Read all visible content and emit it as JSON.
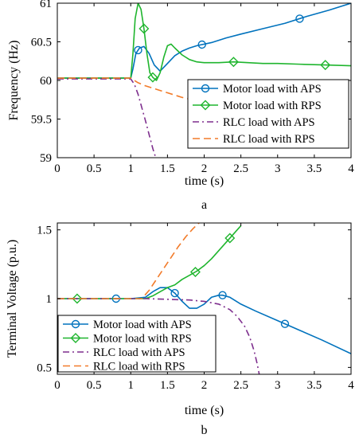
{
  "chart_data": [
    {
      "type": "line",
      "panel_label": "a",
      "xlabel": "time (s)",
      "ylabel": "Frequency (Hz)",
      "xlim": [
        0,
        4
      ],
      "ylim": [
        59,
        61
      ],
      "xticks": [
        0,
        0.5,
        1,
        1.5,
        2,
        2.5,
        3,
        3.5,
        4
      ],
      "xtick_labels": [
        "0",
        "0.5",
        "1",
        "1.5",
        "2",
        "2.5",
        "3",
        "3.5",
        "4"
      ],
      "yticks": [
        59,
        59.5,
        60,
        60.5,
        61
      ],
      "ytick_labels": [
        "59",
        "59.5",
        "60",
        "60.5",
        "61"
      ],
      "grid": false,
      "legend_position": "bottom-right",
      "series": [
        {
          "name": "Motor load with APS",
          "color": "#0072BD",
          "line_style": "solid",
          "marker": "circle",
          "marker_x": [
            1.1,
            1.97,
            3.3
          ],
          "x": [
            0,
            1.0,
            1.03,
            1.07,
            1.12,
            1.18,
            1.25,
            1.32,
            1.4,
            1.5,
            1.6,
            1.7,
            1.8,
            1.9,
            2.0,
            2.1,
            2.3,
            2.5,
            2.8,
            3.1,
            3.4,
            3.7,
            4.0
          ],
          "y": [
            60.03,
            60.03,
            60.15,
            60.35,
            60.42,
            60.44,
            60.35,
            60.2,
            60.12,
            60.22,
            60.32,
            60.38,
            60.42,
            60.45,
            60.47,
            60.49,
            60.55,
            60.6,
            60.67,
            60.74,
            60.83,
            60.91,
            61.0
          ]
        },
        {
          "name": "Motor load with RPS",
          "color": "#1FB52E",
          "line_style": "solid",
          "marker": "diamond",
          "marker_x": [
            1.18,
            1.3,
            2.4,
            3.65
          ],
          "x": [
            0,
            1.0,
            1.03,
            1.06,
            1.1,
            1.14,
            1.18,
            1.22,
            1.26,
            1.3,
            1.35,
            1.4,
            1.45,
            1.5,
            1.55,
            1.6,
            1.7,
            1.8,
            1.9,
            2.0,
            2.2,
            2.4,
            2.6,
            2.8,
            3.0,
            3.3,
            3.65,
            4.0
          ],
          "y": [
            60.03,
            60.03,
            60.35,
            60.8,
            61.0,
            60.92,
            60.67,
            60.35,
            60.1,
            60.04,
            60.0,
            60.1,
            60.3,
            60.45,
            60.47,
            60.42,
            60.33,
            60.27,
            60.24,
            60.23,
            60.23,
            60.24,
            60.23,
            60.22,
            60.22,
            60.21,
            60.2,
            60.19
          ]
        },
        {
          "name": "RLC load with APS",
          "color": "#7E2F8E",
          "line_style": "dashdot",
          "marker": "none",
          "x": [
            0,
            1.0,
            1.05,
            1.1,
            1.15,
            1.2,
            1.25,
            1.3,
            1.34
          ],
          "y": [
            60.02,
            60.02,
            59.95,
            59.82,
            59.65,
            59.48,
            59.3,
            59.12,
            59.0
          ]
        },
        {
          "name": "RLC load with RPS",
          "color": "#F27B2A",
          "line_style": "dashed",
          "marker": "none",
          "x": [
            0,
            1.0,
            1.1,
            1.2,
            1.3,
            1.4,
            1.5,
            1.6,
            1.7,
            1.8
          ],
          "y": [
            60.03,
            60.03,
            59.97,
            59.93,
            59.9,
            59.87,
            59.84,
            59.81,
            59.78,
            59.76
          ]
        }
      ]
    },
    {
      "type": "line",
      "panel_label": "b",
      "xlabel": "time (s)",
      "ylabel": "Terminal Voltage (p.u.)",
      "xlim": [
        0,
        4
      ],
      "ylim": [
        0.45,
        1.55
      ],
      "xticks": [
        0,
        0.5,
        1,
        1.5,
        2,
        2.5,
        3,
        3.5,
        4
      ],
      "xtick_labels": [
        "0",
        "0.5",
        "1",
        "1.5",
        "2",
        "2.5",
        "3",
        "3.5",
        "4"
      ],
      "yticks": [
        0.5,
        1,
        1.5
      ],
      "ytick_labels": [
        "0.5",
        "1",
        "1.5"
      ],
      "grid": false,
      "legend_position": "bottom-left",
      "series": [
        {
          "name": "Motor load with APS",
          "color": "#0072BD",
          "line_style": "solid",
          "marker": "circle",
          "marker_x": [
            0.8,
            1.6,
            2.25,
            3.1
          ],
          "x": [
            0,
            1.0,
            1.2,
            1.3,
            1.4,
            1.5,
            1.6,
            1.7,
            1.8,
            1.9,
            2.0,
            2.1,
            2.2,
            2.25,
            2.35,
            2.5,
            2.7,
            3.0,
            3.3,
            3.6,
            4.0
          ],
          "y": [
            1.0,
            1.0,
            1.01,
            1.05,
            1.08,
            1.08,
            1.04,
            0.98,
            0.93,
            0.93,
            0.96,
            1.01,
            1.025,
            1.025,
            1.01,
            0.96,
            0.91,
            0.84,
            0.77,
            0.7,
            0.6
          ]
        },
        {
          "name": "Motor load with RPS",
          "color": "#1FB52E",
          "line_style": "solid",
          "marker": "diamond",
          "marker_x": [
            0.27,
            1.88,
            2.35
          ],
          "x": [
            0,
            1.0,
            1.2,
            1.3,
            1.4,
            1.5,
            1.6,
            1.7,
            1.8,
            1.9,
            2.0,
            2.1,
            2.2,
            2.3,
            2.4,
            2.5
          ],
          "y": [
            1.0,
            1.0,
            1.0,
            1.02,
            1.05,
            1.08,
            1.1,
            1.14,
            1.17,
            1.2,
            1.24,
            1.29,
            1.35,
            1.41,
            1.47,
            1.53
          ]
        },
        {
          "name": "RLC load with APS",
          "color": "#7E2F8E",
          "line_style": "dashdot",
          "marker": "none",
          "x": [
            0,
            1.2,
            1.5,
            1.8,
            2.0,
            2.2,
            2.35,
            2.45,
            2.55,
            2.62,
            2.68,
            2.72,
            2.75
          ],
          "y": [
            1.0,
            1.0,
            0.995,
            0.99,
            0.98,
            0.96,
            0.92,
            0.87,
            0.8,
            0.72,
            0.62,
            0.53,
            0.45
          ]
        },
        {
          "name": "RLC load with RPS",
          "color": "#F27B2A",
          "line_style": "dashed",
          "marker": "none",
          "x": [
            0,
            1.15,
            1.25,
            1.35,
            1.45,
            1.55,
            1.65,
            1.75,
            1.85,
            1.95
          ],
          "y": [
            1.0,
            1.0,
            1.06,
            1.14,
            1.22,
            1.3,
            1.38,
            1.45,
            1.51,
            1.56
          ]
        }
      ]
    }
  ]
}
